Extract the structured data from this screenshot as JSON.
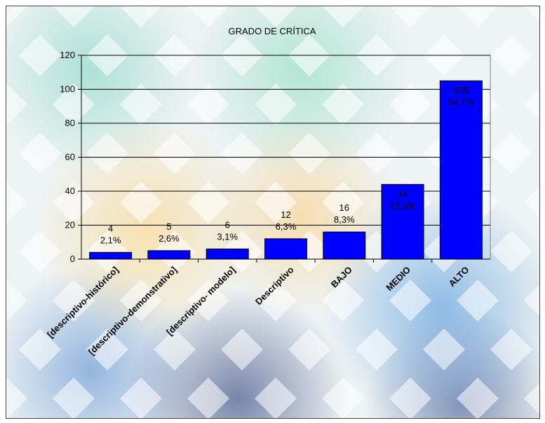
{
  "chart_data": {
    "type": "bar",
    "title": "GRADO DE CRÍTICA",
    "categories": [
      "[descriptivo-histórico]",
      "[descriptivo-demonstrativo]",
      "[descriptivo- modelo]",
      "Descriptivo",
      "BAJO",
      "MEDIO",
      "ALTO"
    ],
    "values": [
      4,
      5,
      6,
      12,
      16,
      44,
      105
    ],
    "value_labels": [
      "4",
      "5",
      "6",
      "12",
      "16",
      "44",
      "105"
    ],
    "percent_labels": [
      "2,1%",
      "2,6%",
      "3,1%",
      "6,3%",
      "8,3%",
      "22,9%",
      "54,7%"
    ],
    "yticks": [
      "0",
      "20",
      "40",
      "60",
      "80",
      "100",
      "120"
    ],
    "ylim": [
      0,
      120
    ],
    "grid": true,
    "bar_color": "#0000ff",
    "xlabel": "",
    "ylabel": ""
  }
}
